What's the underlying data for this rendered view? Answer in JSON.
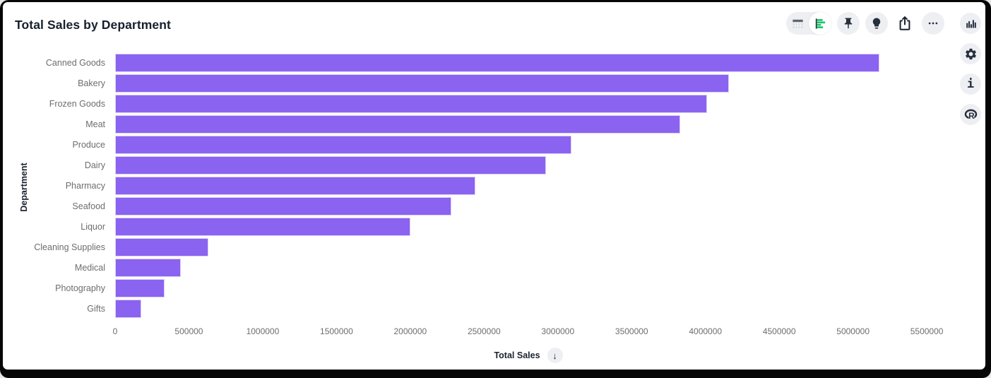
{
  "header": {
    "title": "Total Sales by Department"
  },
  "toolbar": {
    "view_toggle": [
      {
        "icon": "table-icon",
        "selected": false
      },
      {
        "icon": "bar-chart-icon",
        "selected": true,
        "accent_color": "#1fc46c"
      }
    ],
    "buttons": [
      {
        "icon": "pin-icon"
      },
      {
        "icon": "lightbulb-icon"
      },
      {
        "icon": "share-icon"
      },
      {
        "icon": "ellipsis-icon"
      }
    ]
  },
  "sidebar": {
    "buttons": [
      {
        "icon": "column-chart-icon"
      },
      {
        "icon": "gear-icon"
      },
      {
        "icon": "info-icon",
        "glyph": "i"
      },
      {
        "icon": "r-logo-icon",
        "glyph": "R"
      }
    ]
  },
  "chart_data": {
    "type": "bar",
    "orientation": "horizontal",
    "title": "Total Sales by Department",
    "xlabel": "Total Sales",
    "ylabel": "Department",
    "categories": [
      "Canned Goods",
      "Bakery",
      "Frozen Goods",
      "Meat",
      "Produce",
      "Dairy",
      "Pharmacy",
      "Seafood",
      "Liquor",
      "Cleaning Supplies",
      "Medical",
      "Photography",
      "Gifts"
    ],
    "values": [
      5180000,
      4160000,
      4010000,
      3830000,
      3090000,
      2920000,
      2440000,
      2280000,
      2000000,
      630000,
      445000,
      335000,
      175000
    ],
    "xlim": [
      0,
      5600000
    ],
    "xticks": [
      0,
      500000,
      1000000,
      1500000,
      2000000,
      2500000,
      3000000,
      3500000,
      4000000,
      4500000,
      5000000,
      5500000
    ],
    "grid": false,
    "legend": false,
    "sort": "descending",
    "sort_arrow": "↓",
    "bar_color": "#8a63f0"
  }
}
